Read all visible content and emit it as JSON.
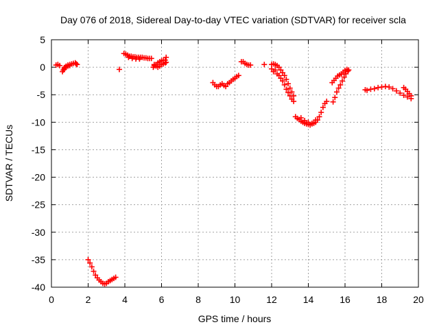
{
  "chart_data": {
    "type": "scatter",
    "title": "Day 076 of 2018, Sidereal Day-to-day VTEC variation (SDTVAR) for receiver scla",
    "xlabel": "GPS time / hours",
    "ylabel": "SDTVAR / TECUs",
    "xlim": [
      0,
      20
    ],
    "ylim": [
      -40,
      5
    ],
    "xticks": [
      0,
      2,
      4,
      6,
      8,
      10,
      12,
      14,
      16,
      18,
      20
    ],
    "yticks": [
      5,
      0,
      -5,
      -10,
      -15,
      -20,
      -25,
      -30,
      -35,
      -40
    ],
    "grid": true,
    "marker": "+",
    "color": "#ff0000",
    "series": [
      {
        "name": "SDTVAR",
        "points": [
          [
            0.25,
            0.4
          ],
          [
            0.35,
            0.5
          ],
          [
            0.45,
            0.3
          ],
          [
            0.6,
            -0.8
          ],
          [
            0.65,
            -0.5
          ],
          [
            0.7,
            -0.3
          ],
          [
            0.75,
            0.0
          ],
          [
            0.8,
            0.2
          ],
          [
            0.9,
            0.4
          ],
          [
            1.0,
            0.5
          ],
          [
            1.1,
            0.6
          ],
          [
            1.2,
            0.7
          ],
          [
            1.3,
            0.8
          ],
          [
            1.35,
            0.6
          ],
          [
            1.4,
            0.5
          ],
          [
            0.7,
            -0.1
          ],
          [
            0.8,
            0.0
          ],
          [
            0.9,
            0.2
          ],
          [
            1.0,
            0.3
          ],
          [
            2.0,
            -35.0
          ],
          [
            2.1,
            -35.6
          ],
          [
            2.2,
            -36.3
          ],
          [
            2.3,
            -37.1
          ],
          [
            2.4,
            -37.8
          ],
          [
            2.5,
            -38.3
          ],
          [
            2.6,
            -38.7
          ],
          [
            2.7,
            -39.0
          ],
          [
            2.8,
            -39.3
          ],
          [
            2.9,
            -39.4
          ],
          [
            3.0,
            -39.3
          ],
          [
            3.1,
            -39.0
          ],
          [
            3.2,
            -38.8
          ],
          [
            3.3,
            -38.6
          ],
          [
            3.4,
            -38.4
          ],
          [
            3.5,
            -38.2
          ],
          [
            3.7,
            -0.4
          ],
          [
            3.95,
            2.5
          ],
          [
            4.05,
            2.4
          ],
          [
            4.15,
            2.2
          ],
          [
            4.25,
            2.0
          ],
          [
            4.35,
            2.0
          ],
          [
            4.45,
            1.9
          ],
          [
            4.55,
            1.9
          ],
          [
            4.65,
            1.8
          ],
          [
            4.75,
            1.8
          ],
          [
            4.85,
            1.8
          ],
          [
            4.95,
            1.8
          ],
          [
            5.05,
            1.7
          ],
          [
            5.15,
            1.7
          ],
          [
            5.25,
            1.6
          ],
          [
            5.35,
            1.6
          ],
          [
            5.45,
            1.6
          ],
          [
            4.2,
            1.8
          ],
          [
            4.4,
            1.6
          ],
          [
            4.6,
            1.5
          ],
          [
            4.8,
            1.5
          ],
          [
            5.55,
            0.0
          ],
          [
            5.6,
            0.3
          ],
          [
            5.7,
            0.5
          ],
          [
            5.8,
            0.8
          ],
          [
            5.9,
            1.0
          ],
          [
            6.0,
            1.2
          ],
          [
            6.1,
            1.3
          ],
          [
            6.2,
            1.3
          ],
          [
            6.25,
            1.8
          ],
          [
            5.6,
            0.5
          ],
          [
            5.7,
            0.2
          ],
          [
            5.8,
            0.0
          ],
          [
            5.9,
            0.2
          ],
          [
            6.0,
            0.5
          ],
          [
            6.1,
            0.6
          ],
          [
            6.2,
            0.8
          ],
          [
            6.25,
            0.9
          ],
          [
            8.8,
            -2.8
          ],
          [
            8.9,
            -3.2
          ],
          [
            9.0,
            -3.5
          ],
          [
            9.1,
            -3.5
          ],
          [
            9.2,
            -3.2
          ],
          [
            9.3,
            -3.0
          ],
          [
            9.4,
            -3.3
          ],
          [
            9.5,
            -3.5
          ],
          [
            9.6,
            -3.0
          ],
          [
            9.7,
            -2.8
          ],
          [
            9.8,
            -2.5
          ],
          [
            9.9,
            -2.2
          ],
          [
            10.0,
            -2.0
          ],
          [
            10.1,
            -1.7
          ],
          [
            10.2,
            -1.5
          ],
          [
            10.35,
            1.0
          ],
          [
            10.45,
            1.0
          ],
          [
            10.55,
            0.7
          ],
          [
            10.65,
            0.5
          ],
          [
            10.75,
            0.4
          ],
          [
            10.85,
            0.4
          ],
          [
            11.6,
            0.5
          ],
          [
            12.0,
            0.5
          ],
          [
            12.1,
            0.6
          ],
          [
            12.2,
            0.5
          ],
          [
            12.3,
            0.3
          ],
          [
            12.4,
            0.0
          ],
          [
            12.5,
            -0.5
          ],
          [
            12.6,
            -1.0
          ],
          [
            12.7,
            -1.5
          ],
          [
            12.8,
            -2.2
          ],
          [
            12.9,
            -3.0
          ],
          [
            13.0,
            -3.8
          ],
          [
            13.1,
            -4.5
          ],
          [
            13.2,
            -5.2
          ],
          [
            12.0,
            -0.3
          ],
          [
            12.1,
            -0.8
          ],
          [
            12.2,
            -0.5
          ],
          [
            12.3,
            -1.2
          ],
          [
            12.4,
            -1.5
          ],
          [
            12.5,
            -2.0
          ],
          [
            12.6,
            -2.5
          ],
          [
            12.7,
            -3.2
          ],
          [
            12.8,
            -4.0
          ],
          [
            12.9,
            -4.6
          ],
          [
            13.0,
            -5.2
          ],
          [
            13.1,
            -5.8
          ],
          [
            13.2,
            -6.2
          ],
          [
            13.3,
            -9.0
          ],
          [
            13.4,
            -9.3
          ],
          [
            13.5,
            -9.5
          ],
          [
            13.6,
            -9.8
          ],
          [
            13.7,
            -10.0
          ],
          [
            13.8,
            -10.2
          ],
          [
            13.9,
            -10.3
          ],
          [
            14.0,
            -10.4
          ],
          [
            14.1,
            -10.5
          ],
          [
            14.2,
            -10.3
          ],
          [
            14.3,
            -10.2
          ],
          [
            14.4,
            -10.0
          ],
          [
            14.5,
            -9.6
          ],
          [
            14.6,
            -9.0
          ],
          [
            14.7,
            -8.2
          ],
          [
            14.8,
            -7.3
          ],
          [
            14.9,
            -6.6
          ],
          [
            15.0,
            -6.2
          ],
          [
            13.6,
            -9.2
          ],
          [
            13.8,
            -9.7
          ],
          [
            14.0,
            -10.0
          ],
          [
            14.2,
            -10.2
          ],
          [
            14.4,
            -9.6
          ],
          [
            15.35,
            -6.3
          ],
          [
            15.45,
            -5.5
          ],
          [
            15.55,
            -4.5
          ],
          [
            15.65,
            -3.8
          ],
          [
            15.75,
            -3.2
          ],
          [
            15.85,
            -2.5
          ],
          [
            15.95,
            -1.8
          ],
          [
            16.05,
            -1.2
          ],
          [
            16.15,
            -0.7
          ],
          [
            16.2,
            -0.5
          ],
          [
            15.3,
            -2.8
          ],
          [
            15.4,
            -2.4
          ],
          [
            15.5,
            -2.0
          ],
          [
            15.6,
            -1.6
          ],
          [
            15.7,
            -1.4
          ],
          [
            15.8,
            -1.2
          ],
          [
            15.9,
            -0.9
          ],
          [
            16.0,
            -0.6
          ],
          [
            16.1,
            -0.4
          ],
          [
            17.1,
            -4.1
          ],
          [
            17.2,
            -4.2
          ],
          [
            17.4,
            -4.0
          ],
          [
            17.6,
            -3.9
          ],
          [
            17.8,
            -3.7
          ],
          [
            18.0,
            -3.6
          ],
          [
            18.2,
            -3.5
          ],
          [
            18.4,
            -3.6
          ],
          [
            18.6,
            -3.9
          ],
          [
            18.8,
            -4.3
          ],
          [
            19.0,
            -4.7
          ],
          [
            19.2,
            -5.1
          ],
          [
            19.4,
            -5.4
          ],
          [
            19.6,
            -5.7
          ],
          [
            19.2,
            -3.7
          ],
          [
            19.3,
            -4.0
          ],
          [
            19.4,
            -4.4
          ],
          [
            19.5,
            -4.8
          ],
          [
            19.6,
            -5.2
          ]
        ]
      }
    ]
  }
}
